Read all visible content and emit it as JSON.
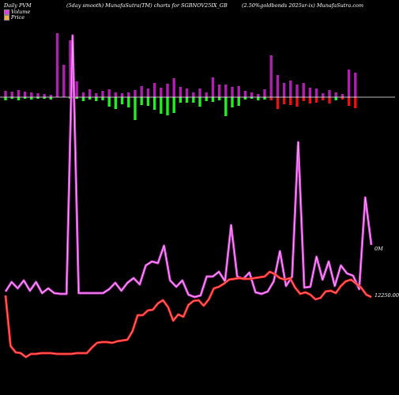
{
  "chart_data": {
    "type": "line",
    "legend_title": "Daily PVM",
    "title": "(5day smooth) MunafaSutra(TM) charts for SGBNOV25IX_GB",
    "source": "(2.50%goldbonds 2025sr-ix) MunafaSutra.com",
    "legend": {
      "placement": "top-left",
      "entries": [
        {
          "name": "Volume",
          "color": "#e33ce3"
        },
        {
          "name": "Price",
          "color": "#f5b041"
        }
      ]
    },
    "axis_labels": {
      "volume": "0M",
      "price": "12250.00"
    },
    "colors": {
      "background": "#000000",
      "volume_line": "#e040e0",
      "price_line": "#ff2020",
      "bar_up": "#b020b0",
      "bar_down_green": "#22ee22",
      "bar_down_red": "#ee1111",
      "baseline": "#ffffff"
    },
    "volume_series": [
      369,
      357,
      365,
      355,
      368,
      357,
      371,
      365,
      371,
      372,
      372,
      45,
      371,
      371,
      371,
      371,
      371,
      366,
      358,
      368,
      358,
      352,
      360,
      336,
      331,
      333,
      311,
      355,
      363,
      355,
      373,
      376,
      374,
      350,
      350,
      344,
      356,
      285,
      350,
      353,
      345,
      370,
      372,
      369,
      356,
      318,
      362,
      350,
      180,
      364,
      363,
      325,
      354,
      331,
      362,
      336,
      346,
      349,
      366,
      250,
      310
    ],
    "price_series": [
      374,
      438,
      446,
      447,
      452,
      448,
      448,
      447,
      447,
      447,
      448,
      448,
      448,
      448,
      447,
      447,
      447,
      440,
      434,
      433,
      433,
      434,
      432,
      431,
      430,
      419,
      399,
      399,
      393,
      392,
      384,
      380,
      389,
      406,
      398,
      401,
      386,
      381,
      380,
      387,
      379,
      365,
      363,
      359,
      354,
      353,
      352,
      353,
      353,
      352,
      351,
      350,
      344,
      347,
      352,
      354,
      352,
      364,
      372,
      370,
      373,
      379,
      377,
      369,
      368,
      371,
      362,
      356,
      354,
      359,
      364,
      373,
      376
    ],
    "bars": [
      {
        "up": 8,
        "down": 4,
        "c": "g"
      },
      {
        "up": 7,
        "down": 2,
        "c": "g"
      },
      {
        "up": 9,
        "down": 4,
        "c": "g"
      },
      {
        "up": 7,
        "down": 2,
        "c": "g"
      },
      {
        "up": 6,
        "down": 3,
        "c": "g"
      },
      {
        "up": 5,
        "down": 2,
        "c": "g"
      },
      {
        "up": 4,
        "down": 2,
        "c": "g"
      },
      {
        "up": 3,
        "down": 3,
        "c": "g"
      },
      {
        "up": 81,
        "down": 0,
        "c": "g"
      },
      {
        "up": 41,
        "down": 0,
        "c": "g"
      },
      {
        "up": 72,
        "down": 2,
        "c": "g"
      },
      {
        "up": 20,
        "down": 2,
        "c": "g"
      },
      {
        "up": 6,
        "down": 5,
        "c": "g"
      },
      {
        "up": 10,
        "down": 3,
        "c": "g"
      },
      {
        "up": 5,
        "down": 5,
        "c": "g"
      },
      {
        "up": 8,
        "down": 4,
        "c": "g"
      },
      {
        "up": 10,
        "down": 12,
        "c": "g"
      },
      {
        "up": 6,
        "down": 15,
        "c": "g"
      },
      {
        "up": 5,
        "down": 9,
        "c": "g"
      },
      {
        "up": 6,
        "down": 13,
        "c": "g"
      },
      {
        "up": 9,
        "down": 29,
        "c": "g"
      },
      {
        "up": 14,
        "down": 10,
        "c": "g"
      },
      {
        "up": 11,
        "down": 11,
        "c": "g"
      },
      {
        "up": 18,
        "down": 16,
        "c": "g"
      },
      {
        "up": 12,
        "down": 21,
        "c": "g"
      },
      {
        "up": 17,
        "down": 23,
        "c": "g"
      },
      {
        "up": 24,
        "down": 20,
        "c": "g"
      },
      {
        "up": 13,
        "down": 7,
        "c": "g"
      },
      {
        "up": 11,
        "down": 7,
        "c": "g"
      },
      {
        "up": 6,
        "down": 7,
        "c": "g"
      },
      {
        "up": 11,
        "down": 12,
        "c": "g"
      },
      {
        "up": 6,
        "down": 5,
        "c": "g"
      },
      {
        "up": 25,
        "down": 6,
        "c": "g"
      },
      {
        "up": 16,
        "down": 4,
        "c": "g"
      },
      {
        "up": 16,
        "down": 24,
        "c": "g"
      },
      {
        "up": 13,
        "down": 13,
        "c": "g"
      },
      {
        "up": 14,
        "down": 11,
        "c": "g"
      },
      {
        "up": 8,
        "down": 3,
        "c": "g"
      },
      {
        "up": 6,
        "down": 2,
        "c": "g"
      },
      {
        "up": 4,
        "down": 4,
        "c": "g"
      },
      {
        "up": 10,
        "down": 3,
        "c": "g"
      },
      {
        "up": 53,
        "down": 4,
        "c": "r"
      },
      {
        "up": 28,
        "down": 15,
        "c": "r"
      },
      {
        "up": 18,
        "down": 9,
        "c": "r"
      },
      {
        "up": 21,
        "down": 10,
        "c": "r"
      },
      {
        "up": 16,
        "down": 12,
        "c": "r"
      },
      {
        "up": 18,
        "down": 5,
        "c": "r"
      },
      {
        "up": 12,
        "down": 8,
        "c": "r"
      },
      {
        "up": 11,
        "down": 7,
        "c": "r"
      },
      {
        "up": 5,
        "down": 4,
        "c": "r"
      },
      {
        "up": 9,
        "down": 8,
        "c": "r"
      },
      {
        "up": 6,
        "down": 4,
        "c": "g"
      },
      {
        "up": 4,
        "down": 3,
        "c": "r"
      },
      {
        "up": 35,
        "down": 11,
        "c": "r"
      },
      {
        "up": 31,
        "down": 14,
        "c": "r"
      }
    ]
  }
}
